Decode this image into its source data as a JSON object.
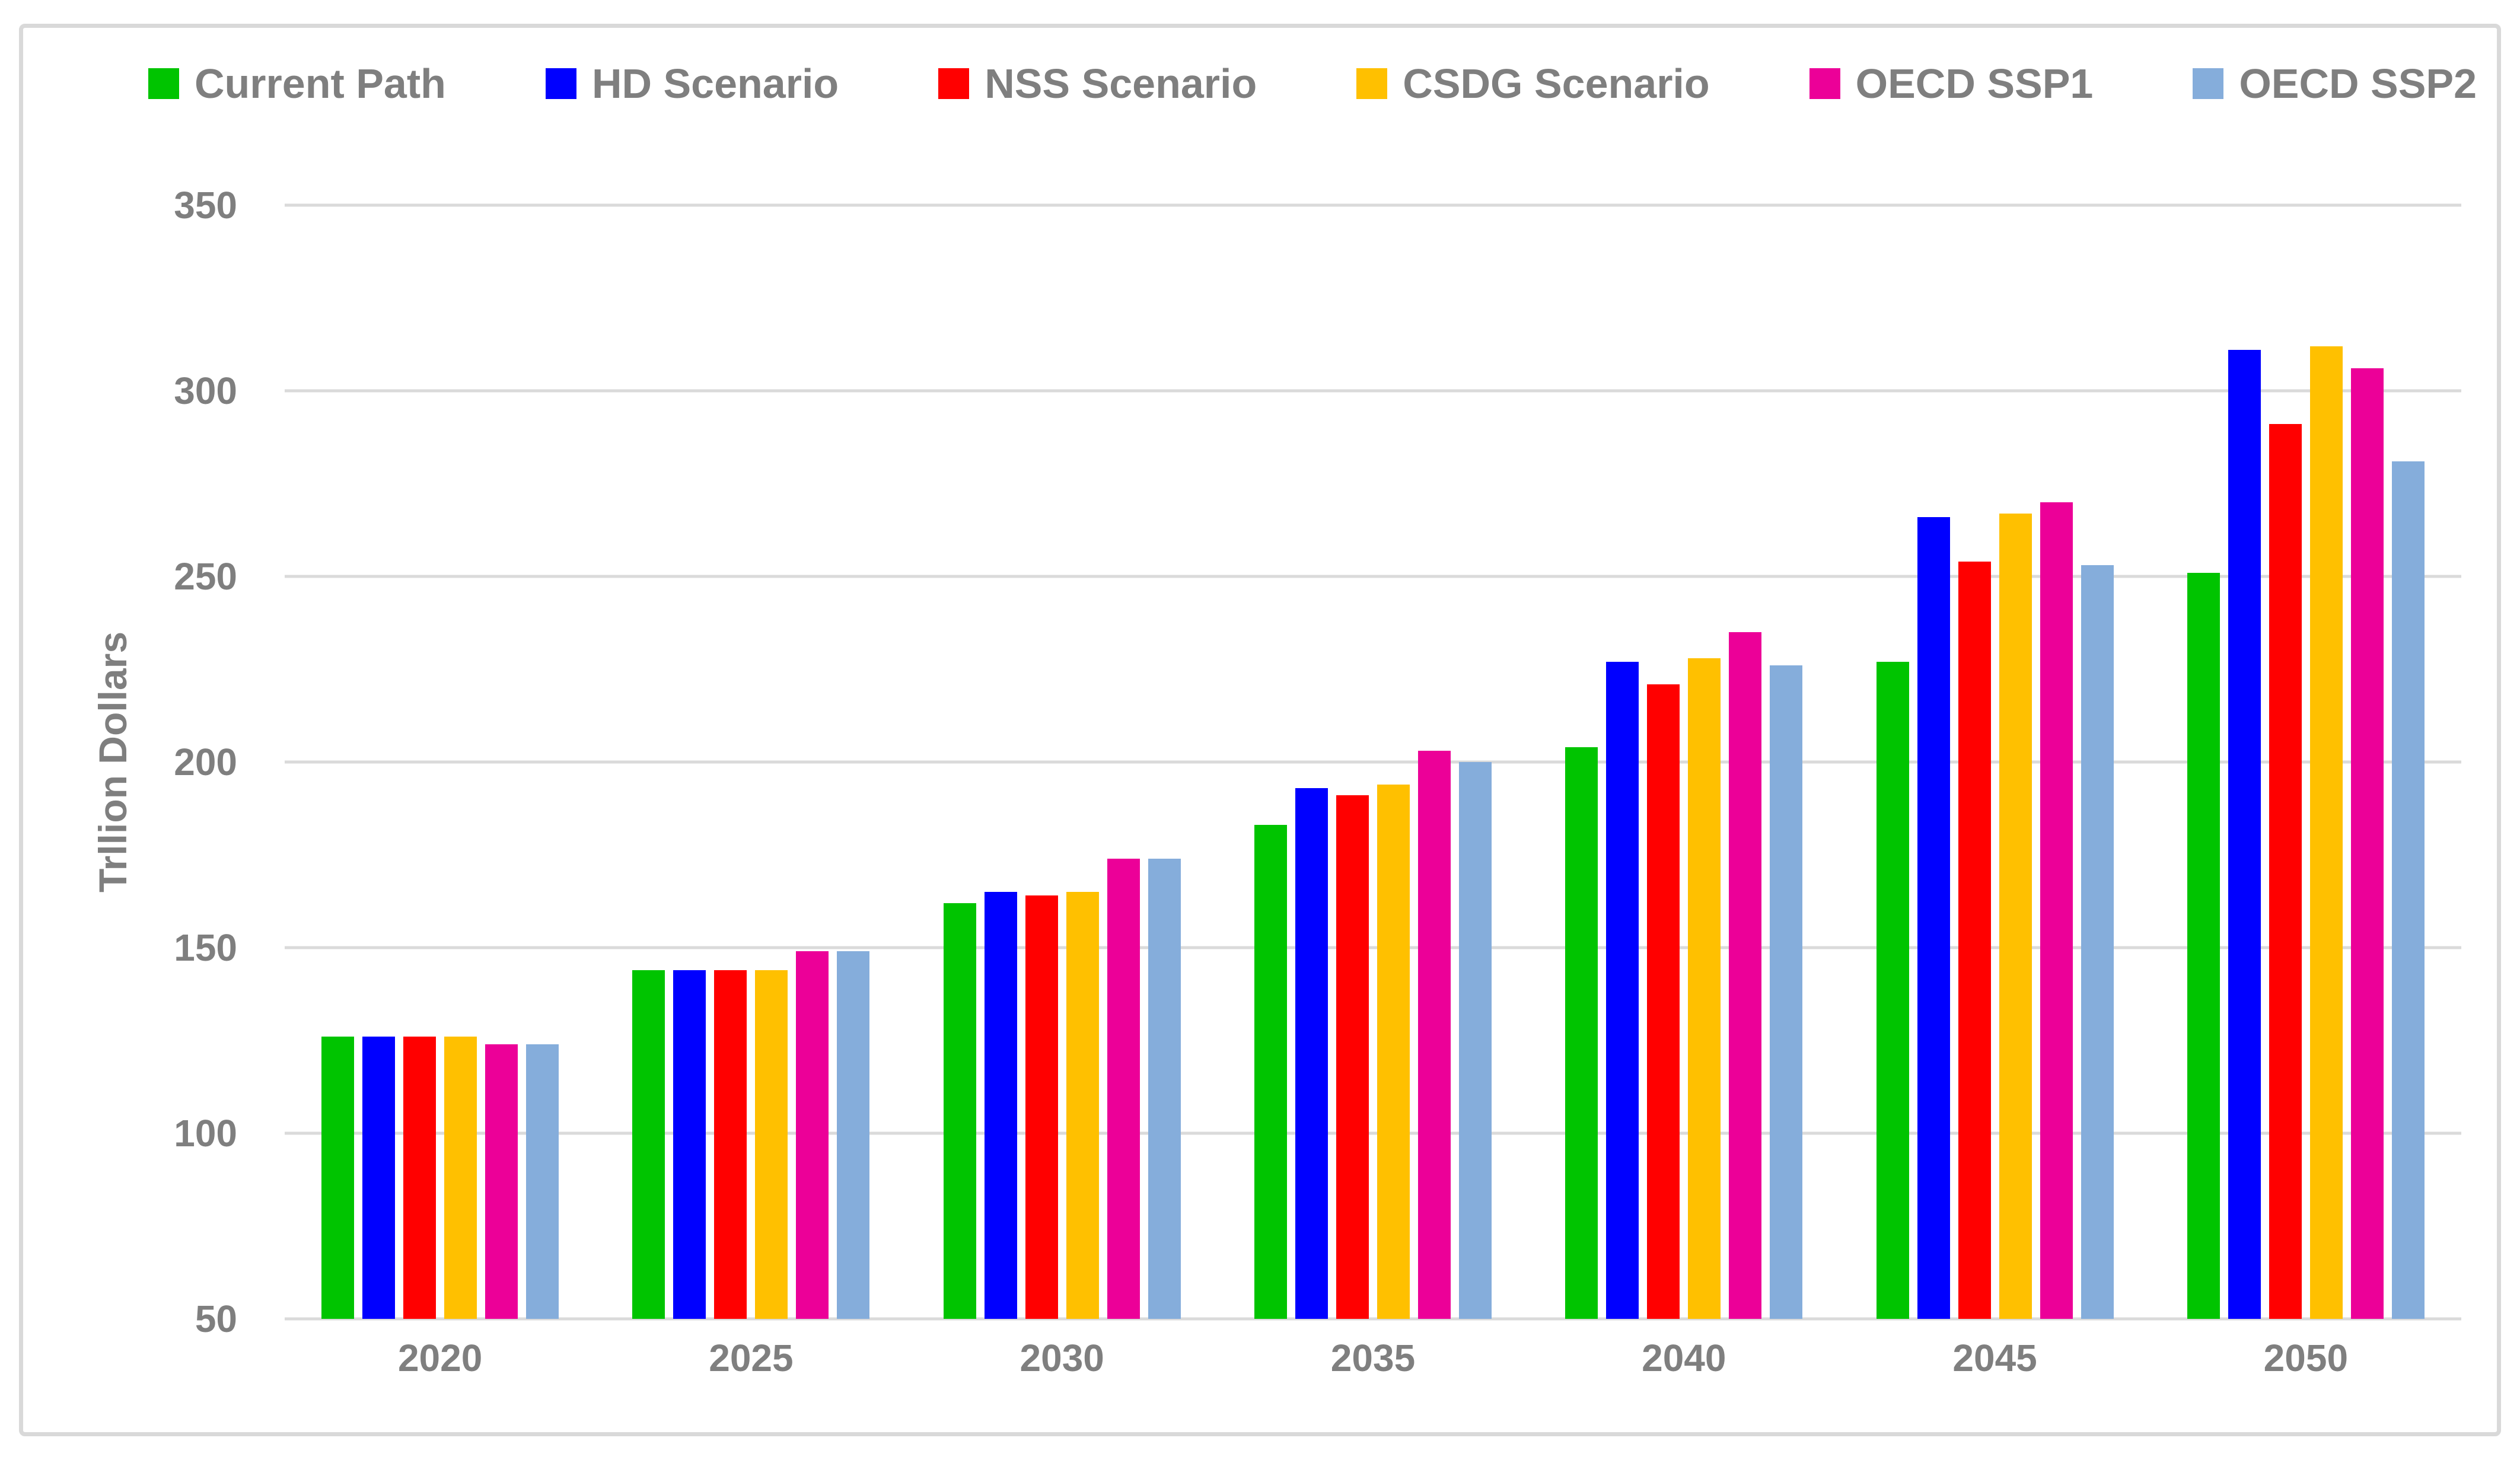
{
  "chart_data": {
    "type": "bar",
    "title": "",
    "ylabel": "Trllion Dollars",
    "xlabel": "",
    "ylim": [
      50,
      350
    ],
    "yticks": [
      350,
      300,
      250,
      200,
      150,
      100,
      50
    ],
    "grid": true,
    "legend_position": "top",
    "categories": [
      "2020",
      "2025",
      "2030",
      "2035",
      "2040",
      "2045",
      "2050"
    ],
    "series": [
      {
        "name": "Current Path",
        "color": "#00C400",
        "values": [
          126,
          144,
          162,
          183,
          204,
          227,
          251
        ]
      },
      {
        "name": "HD Scenario",
        "color": "#0000FF",
        "values": [
          126,
          144,
          165,
          193,
          227,
          266,
          311
        ]
      },
      {
        "name": "NSS Scenario",
        "color": "#FF0000",
        "values": [
          126,
          144,
          164,
          191,
          221,
          254,
          291
        ]
      },
      {
        "name": "CSDG Scenario",
        "color": "#FFC000",
        "values": [
          126,
          144,
          165,
          194,
          228,
          267,
          312
        ]
      },
      {
        "name": "OECD SSP1",
        "color": "#EC0098",
        "values": [
          124,
          149,
          174,
          203,
          235,
          270,
          306
        ]
      },
      {
        "name": "OECD SSP2",
        "color": "#85ADDB",
        "values": [
          124,
          149,
          174,
          200,
          226,
          253,
          281
        ]
      }
    ],
    "colors": {
      "text": "#7F7F7F",
      "gridline": "#DADADA",
      "border": "#D9D9D9",
      "background": "#FFFFFF"
    }
  }
}
